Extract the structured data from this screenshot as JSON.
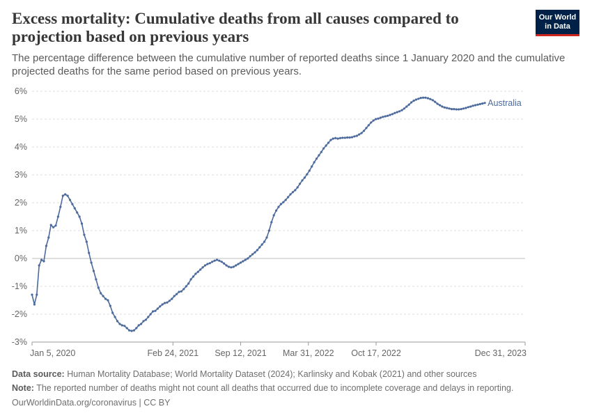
{
  "header": {
    "title": "Excess mortality: Cumulative deaths from all causes compared to projection based on previous years",
    "subtitle": "The percentage difference between the cumulative number of reported deaths since 1 January 2020 and the cumulative projected deaths for the same period based on previous years.",
    "logo_line1": "Our World",
    "logo_line2": "in Data"
  },
  "footer": {
    "source_label": "Data source:",
    "source_text": "Human Mortality Database; World Mortality Dataset (2024); Karlinsky and Kobak (2021) and other sources",
    "note_label": "Note:",
    "note_text": "The reported number of deaths might not count all deaths that occurred due to incomplete coverage and delays in reporting.",
    "url_text": "OurWorldinData.org/coronavirus | CC BY"
  },
  "colors": {
    "series": "#4c6a9c",
    "grid": "#dddddd",
    "zero_line": "#bdbdbd",
    "axis_text": "#666666"
  },
  "chart_data": {
    "type": "line",
    "title": "Excess mortality: Cumulative deaths from all causes compared to projection based on previous years",
    "ylim": [
      -3,
      6
    ],
    "y_ticks": [
      -3,
      -2,
      -1,
      0,
      1,
      2,
      3,
      4,
      5,
      6
    ],
    "y_tick_labels": [
      "-3%",
      "-2%",
      "-1%",
      "0%",
      "1%",
      "2%",
      "3%",
      "4%",
      "5%",
      "6%"
    ],
    "xlim": [
      "2020-01-05",
      "2023-12-31"
    ],
    "x_ticks": [
      "2020-01-05",
      "2021-02-24",
      "2021-09-12",
      "2022-03-31",
      "2022-10-17",
      "2023-12-31"
    ],
    "x_tick_labels": [
      "Jan 5, 2020",
      "Feb 24, 2021",
      "Sep 12, 2021",
      "Mar 31, 2022",
      "Oct 17, 2022",
      "Dec 31, 2023"
    ],
    "grid": "horizontal dashed",
    "legend": "inline label at line end (right)",
    "series": [
      {
        "name": "Australia",
        "color": "#4c6a9c",
        "points": [
          [
            "2020-01-05",
            -1.3
          ],
          [
            "2020-01-12",
            -1.65
          ],
          [
            "2020-01-19",
            -1.3
          ],
          [
            "2020-01-26",
            -0.25
          ],
          [
            "2020-02-02",
            -0.05
          ],
          [
            "2020-02-09",
            -0.1
          ],
          [
            "2020-02-16",
            0.45
          ],
          [
            "2020-02-23",
            0.75
          ],
          [
            "2020-03-01",
            1.2
          ],
          [
            "2020-03-08",
            1.12
          ],
          [
            "2020-03-15",
            1.18
          ],
          [
            "2020-03-22",
            1.5
          ],
          [
            "2020-03-29",
            1.85
          ],
          [
            "2020-04-05",
            2.25
          ],
          [
            "2020-04-12",
            2.3
          ],
          [
            "2020-04-19",
            2.25
          ],
          [
            "2020-04-26",
            2.1
          ],
          [
            "2020-05-03",
            1.95
          ],
          [
            "2020-05-10",
            1.8
          ],
          [
            "2020-05-17",
            1.65
          ],
          [
            "2020-05-24",
            1.5
          ],
          [
            "2020-05-31",
            1.25
          ],
          [
            "2020-06-07",
            0.85
          ],
          [
            "2020-06-14",
            0.6
          ],
          [
            "2020-06-21",
            0.2
          ],
          [
            "2020-06-28",
            -0.15
          ],
          [
            "2020-07-05",
            -0.45
          ],
          [
            "2020-07-12",
            -0.75
          ],
          [
            "2020-07-19",
            -1.05
          ],
          [
            "2020-07-26",
            -1.25
          ],
          [
            "2020-08-02",
            -1.35
          ],
          [
            "2020-08-09",
            -1.45
          ],
          [
            "2020-08-16",
            -1.5
          ],
          [
            "2020-08-23",
            -1.7
          ],
          [
            "2020-08-30",
            -1.95
          ],
          [
            "2020-09-06",
            -2.1
          ],
          [
            "2020-09-13",
            -2.25
          ],
          [
            "2020-09-20",
            -2.35
          ],
          [
            "2020-09-27",
            -2.4
          ],
          [
            "2020-10-04",
            -2.42
          ],
          [
            "2020-10-11",
            -2.5
          ],
          [
            "2020-10-18",
            -2.58
          ],
          [
            "2020-10-25",
            -2.6
          ],
          [
            "2020-11-01",
            -2.58
          ],
          [
            "2020-11-08",
            -2.5
          ],
          [
            "2020-11-15",
            -2.4
          ],
          [
            "2020-11-22",
            -2.35
          ],
          [
            "2020-11-29",
            -2.25
          ],
          [
            "2020-12-06",
            -2.2
          ],
          [
            "2020-12-13",
            -2.1
          ],
          [
            "2020-12-20",
            -2.0
          ],
          [
            "2020-12-27",
            -1.9
          ],
          [
            "2021-01-03",
            -1.88
          ],
          [
            "2021-01-10",
            -1.8
          ],
          [
            "2021-01-17",
            -1.72
          ],
          [
            "2021-01-24",
            -1.65
          ],
          [
            "2021-01-31",
            -1.6
          ],
          [
            "2021-02-07",
            -1.58
          ],
          [
            "2021-02-14",
            -1.52
          ],
          [
            "2021-02-21",
            -1.45
          ],
          [
            "2021-02-28",
            -1.35
          ],
          [
            "2021-03-07",
            -1.28
          ],
          [
            "2021-03-14",
            -1.2
          ],
          [
            "2021-03-21",
            -1.18
          ],
          [
            "2021-03-28",
            -1.1
          ],
          [
            "2021-04-04",
            -1.0
          ],
          [
            "2021-04-11",
            -0.9
          ],
          [
            "2021-04-18",
            -0.75
          ],
          [
            "2021-04-25",
            -0.65
          ],
          [
            "2021-05-02",
            -0.55
          ],
          [
            "2021-05-09",
            -0.48
          ],
          [
            "2021-05-16",
            -0.4
          ],
          [
            "2021-05-23",
            -0.32
          ],
          [
            "2021-05-30",
            -0.25
          ],
          [
            "2021-06-06",
            -0.2
          ],
          [
            "2021-06-13",
            -0.17
          ],
          [
            "2021-06-20",
            -0.12
          ],
          [
            "2021-06-27",
            -0.08
          ],
          [
            "2021-07-04",
            -0.05
          ],
          [
            "2021-07-11",
            -0.08
          ],
          [
            "2021-07-18",
            -0.12
          ],
          [
            "2021-07-25",
            -0.18
          ],
          [
            "2021-08-01",
            -0.25
          ],
          [
            "2021-08-08",
            -0.3
          ],
          [
            "2021-08-15",
            -0.32
          ],
          [
            "2021-08-22",
            -0.3
          ],
          [
            "2021-08-29",
            -0.25
          ],
          [
            "2021-09-05",
            -0.2
          ],
          [
            "2021-09-12",
            -0.15
          ],
          [
            "2021-09-19",
            -0.1
          ],
          [
            "2021-09-26",
            -0.05
          ],
          [
            "2021-10-03",
            0.0
          ],
          [
            "2021-10-10",
            0.08
          ],
          [
            "2021-10-17",
            0.15
          ],
          [
            "2021-10-24",
            0.22
          ],
          [
            "2021-10-31",
            0.3
          ],
          [
            "2021-11-07",
            0.4
          ],
          [
            "2021-11-14",
            0.5
          ],
          [
            "2021-11-21",
            0.6
          ],
          [
            "2021-11-28",
            0.75
          ],
          [
            "2021-12-05",
            1.0
          ],
          [
            "2021-12-12",
            1.3
          ],
          [
            "2021-12-19",
            1.55
          ],
          [
            "2021-12-26",
            1.72
          ],
          [
            "2022-01-02",
            1.85
          ],
          [
            "2022-01-09",
            1.95
          ],
          [
            "2022-01-16",
            2.02
          ],
          [
            "2022-01-23",
            2.1
          ],
          [
            "2022-01-30",
            2.2
          ],
          [
            "2022-02-06",
            2.3
          ],
          [
            "2022-02-13",
            2.38
          ],
          [
            "2022-02-20",
            2.45
          ],
          [
            "2022-02-27",
            2.55
          ],
          [
            "2022-03-06",
            2.68
          ],
          [
            "2022-03-13",
            2.8
          ],
          [
            "2022-03-20",
            2.9
          ],
          [
            "2022-03-27",
            3.02
          ],
          [
            "2022-04-03",
            3.15
          ],
          [
            "2022-04-10",
            3.3
          ],
          [
            "2022-04-17",
            3.45
          ],
          [
            "2022-04-24",
            3.58
          ],
          [
            "2022-05-01",
            3.7
          ],
          [
            "2022-05-08",
            3.82
          ],
          [
            "2022-05-15",
            3.95
          ],
          [
            "2022-05-22",
            4.05
          ],
          [
            "2022-05-29",
            4.15
          ],
          [
            "2022-06-05",
            4.25
          ],
          [
            "2022-06-12",
            4.3
          ],
          [
            "2022-06-19",
            4.32
          ],
          [
            "2022-06-26",
            4.3
          ],
          [
            "2022-07-03",
            4.32
          ],
          [
            "2022-07-10",
            4.33
          ],
          [
            "2022-07-17",
            4.33
          ],
          [
            "2022-07-24",
            4.34
          ],
          [
            "2022-07-31",
            4.34
          ],
          [
            "2022-08-07",
            4.35
          ],
          [
            "2022-08-14",
            4.38
          ],
          [
            "2022-08-21",
            4.4
          ],
          [
            "2022-08-28",
            4.45
          ],
          [
            "2022-09-04",
            4.5
          ],
          [
            "2022-09-11",
            4.58
          ],
          [
            "2022-09-18",
            4.68
          ],
          [
            "2022-09-25",
            4.78
          ],
          [
            "2022-10-02",
            4.88
          ],
          [
            "2022-10-09",
            4.95
          ],
          [
            "2022-10-16",
            5.0
          ],
          [
            "2022-10-23",
            5.02
          ],
          [
            "2022-10-30",
            5.05
          ],
          [
            "2022-11-06",
            5.08
          ],
          [
            "2022-11-13",
            5.1
          ],
          [
            "2022-11-20",
            5.12
          ],
          [
            "2022-11-27",
            5.15
          ],
          [
            "2022-12-04",
            5.18
          ],
          [
            "2022-12-11",
            5.22
          ],
          [
            "2022-12-18",
            5.25
          ],
          [
            "2022-12-25",
            5.28
          ],
          [
            "2023-01-01",
            5.32
          ],
          [
            "2023-01-08",
            5.38
          ],
          [
            "2023-01-15",
            5.45
          ],
          [
            "2023-01-22",
            5.52
          ],
          [
            "2023-01-29",
            5.6
          ],
          [
            "2023-02-05",
            5.66
          ],
          [
            "2023-02-12",
            5.7
          ],
          [
            "2023-02-19",
            5.73
          ],
          [
            "2023-02-26",
            5.76
          ],
          [
            "2023-03-05",
            5.77
          ],
          [
            "2023-03-12",
            5.77
          ],
          [
            "2023-03-19",
            5.75
          ],
          [
            "2023-03-26",
            5.72
          ],
          [
            "2023-04-02",
            5.68
          ],
          [
            "2023-04-09",
            5.62
          ],
          [
            "2023-04-16",
            5.55
          ],
          [
            "2023-04-23",
            5.5
          ],
          [
            "2023-04-30",
            5.45
          ],
          [
            "2023-05-07",
            5.42
          ],
          [
            "2023-05-14",
            5.4
          ],
          [
            "2023-05-21",
            5.38
          ],
          [
            "2023-05-28",
            5.36
          ],
          [
            "2023-06-04",
            5.36
          ],
          [
            "2023-06-11",
            5.35
          ],
          [
            "2023-06-18",
            5.35
          ],
          [
            "2023-06-25",
            5.36
          ],
          [
            "2023-07-02",
            5.38
          ],
          [
            "2023-07-09",
            5.4
          ],
          [
            "2023-07-16",
            5.43
          ],
          [
            "2023-07-23",
            5.45
          ],
          [
            "2023-07-30",
            5.48
          ],
          [
            "2023-08-06",
            5.5
          ],
          [
            "2023-08-13",
            5.52
          ],
          [
            "2023-08-20",
            5.54
          ],
          [
            "2023-08-27",
            5.56
          ],
          [
            "2023-09-03",
            5.58
          ]
        ]
      }
    ]
  }
}
